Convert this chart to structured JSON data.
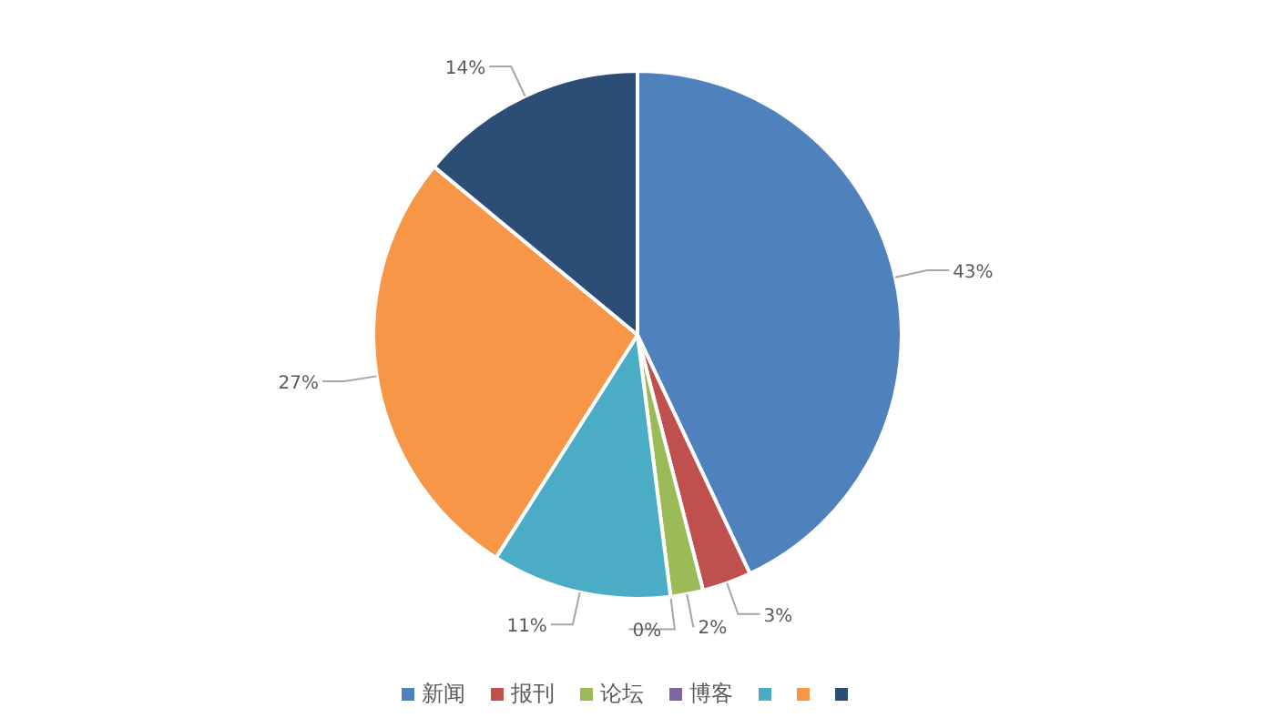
{
  "chart_data": {
    "type": "pie",
    "categories": [
      "新闻",
      "报刊",
      "论坛",
      "博客",
      null,
      null,
      null
    ],
    "values": [
      43,
      3,
      2,
      0,
      11,
      27,
      14
    ],
    "colors": [
      "#4f81bd",
      "#c0504d",
      "#9bbb59",
      "#8064a2",
      "#4bacc6",
      "#f79646",
      "#2c4d75"
    ],
    "value_labels": [
      "43%",
      "3%",
      "2%",
      "0%",
      "11%",
      "27%",
      "14%"
    ],
    "legend": "bottom"
  }
}
